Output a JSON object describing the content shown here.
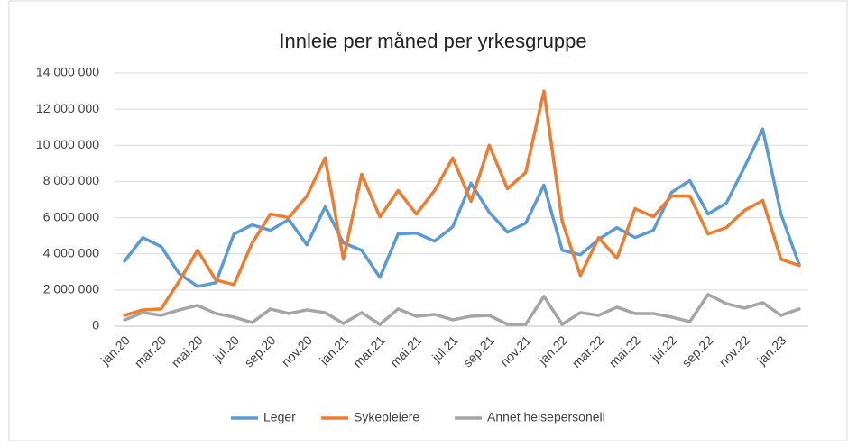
{
  "chart_data": {
    "type": "line",
    "title": "Innleie per måned per yrkesgruppe",
    "categories": [
      "jan.20",
      null,
      "mar.20",
      null,
      "mai.20",
      null,
      "jul.20",
      null,
      "sep.20",
      null,
      "nov.20",
      null,
      "jan.21",
      null,
      "mar.21",
      null,
      "mai.21",
      null,
      "jul.21",
      null,
      "sep.21",
      null,
      "nov.21",
      null,
      "jan.22",
      null,
      "mar.22",
      null,
      "mai.22",
      null,
      "jul.22",
      null,
      "sep.22",
      null,
      "nov.22",
      null,
      "jan.23",
      null
    ],
    "series": [
      {
        "name": "Leger",
        "color": "#5b9bd5",
        "values": [
          3600000,
          4900000,
          4400000,
          2900000,
          2200000,
          2400000,
          5100000,
          5600000,
          5300000,
          5900000,
          4500000,
          6600000,
          4600000,
          4200000,
          2700000,
          5100000,
          5150000,
          4700000,
          5500000,
          7900000,
          6300000,
          5200000,
          5700000,
          7800000,
          4200000,
          3950000,
          4800000,
          5450000,
          4900000,
          5300000,
          7400000,
          8050000,
          6200000,
          6800000,
          8800000,
          10900000,
          6200000,
          3400000
        ]
      },
      {
        "name": "Sykepleiere",
        "color": "#ed7d31",
        "values": [
          600000,
          900000,
          950000,
          2500000,
          4200000,
          2550000,
          2300000,
          4600000,
          6200000,
          6000000,
          7200000,
          9300000,
          3700000,
          8400000,
          6050000,
          7500000,
          6200000,
          7500000,
          9300000,
          6900000,
          10000000,
          7600000,
          8500000,
          13000000,
          5800000,
          2800000,
          4900000,
          3750000,
          6500000,
          6050000,
          7200000,
          7200000,
          5100000,
          5450000,
          6400000,
          6950000,
          3700000,
          3350000
        ]
      },
      {
        "name": "Annet helsepersonell",
        "color": "#a5a5a5",
        "values": [
          350000,
          750000,
          600000,
          900000,
          1150000,
          700000,
          500000,
          200000,
          950000,
          700000,
          900000,
          750000,
          150000,
          750000,
          100000,
          950000,
          550000,
          650000,
          350000,
          550000,
          600000,
          100000,
          100000,
          1650000,
          100000,
          750000,
          600000,
          1050000,
          700000,
          700000,
          500000,
          250000,
          1750000,
          1250000,
          1000000,
          1300000,
          600000,
          950000
        ]
      }
    ],
    "ylim": [
      0,
      14000000
    ],
    "yticks": [
      0,
      {
        "value": 2000000,
        "label": "2 000 000"
      },
      {
        "value": 4000000,
        "label": "4 000 000"
      },
      {
        "value": 6000000,
        "label": "6 000 000"
      },
      {
        "value": 8000000,
        "label": "8 000 000"
      },
      {
        "value": 10000000,
        "label": "10 000 000"
      },
      {
        "value": 12000000,
        "label": "12 000 000"
      },
      {
        "value": 14000000,
        "label": "14 000 000"
      }
    ],
    "grid": true,
    "legend": "bottom"
  }
}
